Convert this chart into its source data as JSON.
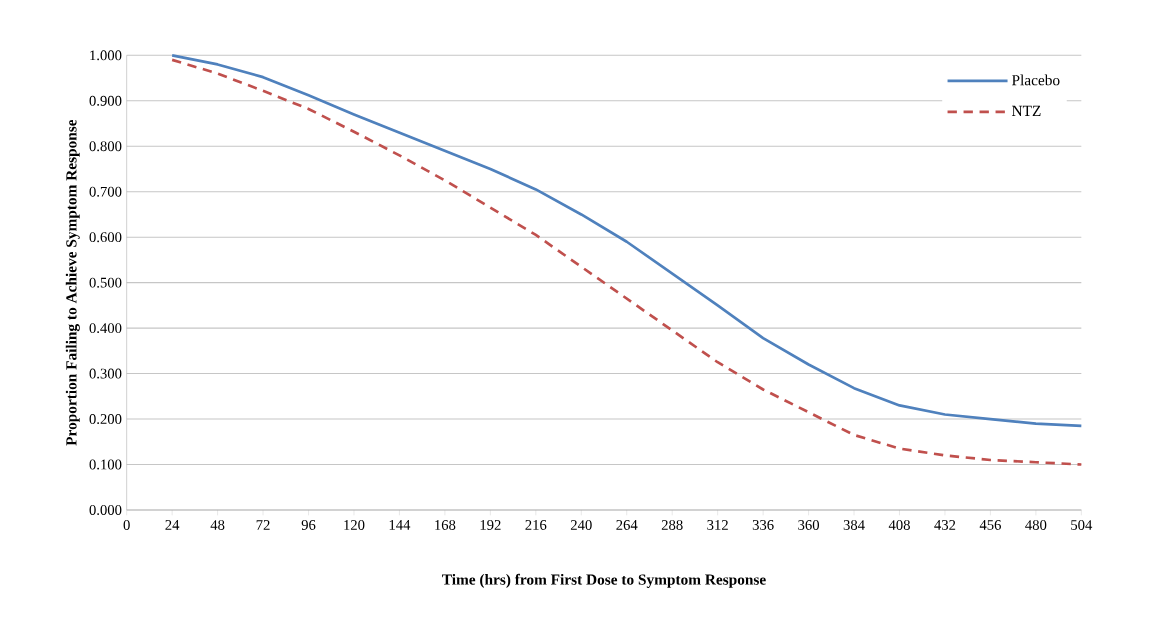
{
  "chart_data": {
    "type": "line",
    "xlabel": "Time (hrs) from First Dose to Symptom Response",
    "ylabel": "Proportion Failing to Achieve Symptom Response",
    "x": [
      24,
      48,
      72,
      96,
      120,
      144,
      168,
      192,
      216,
      240,
      264,
      288,
      312,
      336,
      360,
      384,
      408,
      432,
      456,
      480,
      504
    ],
    "series": [
      {
        "name": "Placebo",
        "color": "#4f81bd",
        "line_style": "solid",
        "values": [
          1.0,
          0.98,
          0.952,
          0.912,
          0.87,
          0.83,
          0.79,
          0.75,
          0.705,
          0.65,
          0.59,
          0.52,
          0.45,
          0.378,
          0.32,
          0.268,
          0.23,
          0.21,
          0.2,
          0.19,
          0.185
        ]
      },
      {
        "name": "NTZ",
        "color": "#c0504d",
        "line_style": "dashed",
        "values": [
          0.99,
          0.96,
          0.922,
          0.882,
          0.832,
          0.78,
          0.725,
          0.665,
          0.605,
          0.535,
          0.465,
          0.395,
          0.325,
          0.265,
          0.215,
          0.165,
          0.135,
          0.12,
          0.11,
          0.105,
          0.1
        ]
      }
    ],
    "xlim": [
      0,
      504
    ],
    "xticks": [
      0,
      24,
      48,
      72,
      96,
      120,
      144,
      168,
      192,
      216,
      240,
      264,
      288,
      312,
      336,
      360,
      384,
      408,
      432,
      456,
      480,
      504
    ],
    "ylim": [
      0,
      1
    ],
    "yticks": [
      {
        "value": 0,
        "label": "0.000"
      },
      {
        "value": 0.1,
        "label": "0.100"
      },
      {
        "value": 0.2,
        "label": "0.200"
      },
      {
        "value": 0.3,
        "label": "0.300"
      },
      {
        "value": 0.4,
        "label": "0.400"
      },
      {
        "value": 0.5,
        "label": "0.500"
      },
      {
        "value": 0.6,
        "label": "0.600"
      },
      {
        "value": 0.7,
        "label": "0.700"
      },
      {
        "value": 0.8,
        "label": "0.800"
      },
      {
        "value": 0.9,
        "label": "0.900"
      },
      {
        "value": 1,
        "label": "1.000"
      }
    ],
    "grid": "y",
    "legend": "top right",
    "marker": "none"
  }
}
